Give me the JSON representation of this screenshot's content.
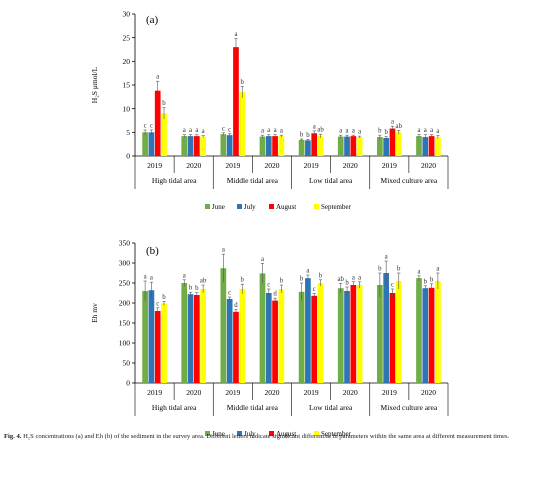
{
  "figure": {
    "caption_label": "Fig. 4.",
    "caption_text": "H₂S concentrations (a) and Eh (b) of the sediment in the survey area. Different letters indicate significant differences in parameters within the same area at different measurement times."
  },
  "colors": {
    "June": "#70ad47",
    "July": "#2e75b6",
    "August": "#ff0000",
    "September": "#ffff00",
    "axis": "#000000",
    "error": "#555555"
  },
  "chart_data": [
    {
      "type": "bar",
      "panel_label": "(a)",
      "ylabel": "H₂S μmol/L",
      "ylim": [
        0,
        30
      ],
      "yticks": [
        0,
        5,
        10,
        15,
        20,
        25,
        30
      ],
      "areas": [
        "High tidal area",
        "Middle tidal area",
        "Low tidal area",
        "Mixed culture area"
      ],
      "years": [
        "2019",
        "2020"
      ],
      "legend": [
        "June",
        "July",
        "August",
        "September"
      ],
      "legend_position": "bottom",
      "groups": [
        {
          "area": "High tidal area",
          "year": "2019",
          "values": [
            5.0,
            5.0,
            13.8,
            9.0
          ],
          "errors": [
            0.5,
            0.5,
            2.0,
            1.2
          ],
          "letters": [
            "c",
            "c",
            "a",
            "b"
          ]
        },
        {
          "area": "High tidal area",
          "year": "2020",
          "values": [
            4.2,
            4.2,
            4.2,
            4.1
          ],
          "errors": [
            0.3,
            0.3,
            0.3,
            0.2
          ],
          "letters": [
            "a",
            "a",
            "a",
            "a"
          ]
        },
        {
          "area": "Middle tidal area",
          "year": "2019",
          "values": [
            4.6,
            4.4,
            23.0,
            13.5
          ],
          "errors": [
            0.3,
            0.3,
            1.8,
            1.2
          ],
          "letters": [
            "c",
            "c",
            "a",
            "b"
          ]
        },
        {
          "area": "Middle tidal area",
          "year": "2020",
          "values": [
            4.1,
            4.2,
            4.2,
            4.2
          ],
          "errors": [
            0.3,
            0.3,
            0.3,
            0.2
          ],
          "letters": [
            "a",
            "a",
            "a",
            "a"
          ]
        },
        {
          "area": "Low tidal area",
          "year": "2019",
          "values": [
            3.4,
            3.3,
            4.8,
            4.2
          ],
          "errors": [
            0.2,
            0.2,
            0.5,
            0.4
          ],
          "letters": [
            "b",
            "b",
            "a",
            "ab"
          ]
        },
        {
          "area": "Low tidal area",
          "year": "2020",
          "values": [
            4.1,
            4.1,
            4.2,
            4.0
          ],
          "errors": [
            0.3,
            0.3,
            0.2,
            0.2
          ],
          "letters": [
            "a",
            "a",
            "a",
            "a"
          ]
        },
        {
          "area": "Mixed culture area",
          "year": "2019",
          "values": [
            4.0,
            3.8,
            5.8,
            5.0
          ],
          "errors": [
            0.4,
            0.3,
            0.5,
            0.4
          ],
          "letters": [
            "b",
            "b",
            "a",
            "ab"
          ]
        },
        {
          "area": "Mixed culture area",
          "year": "2020",
          "values": [
            4.2,
            4.0,
            4.2,
            4.0
          ],
          "errors": [
            0.3,
            0.5,
            0.3,
            0.3
          ],
          "letters": [
            "a",
            "a",
            "a",
            "a"
          ]
        }
      ]
    },
    {
      "type": "bar",
      "panel_label": "(b)",
      "ylabel": "Eh mv",
      "ylim": [
        0,
        350
      ],
      "yticks": [
        0,
        50,
        100,
        150,
        200,
        250,
        300,
        350
      ],
      "areas": [
        "High tidal area",
        "Middle tidal area",
        "Low tidal area",
        "Mixed culture area"
      ],
      "years": [
        "2019",
        "2020"
      ],
      "legend": [
        "June",
        "July",
        "August",
        "September"
      ],
      "legend_position": "bottom",
      "groups": [
        {
          "area": "High tidal area",
          "year": "2019",
          "values": [
            230,
            232,
            180,
            199
          ],
          "errors": [
            25,
            20,
            8,
            5
          ],
          "letters": [
            "a",
            "a",
            "c",
            "b"
          ]
        },
        {
          "area": "High tidal area",
          "year": "2020",
          "values": [
            250,
            222,
            220,
            235
          ],
          "errors": [
            8,
            5,
            6,
            10
          ],
          "letters": [
            "a",
            "b",
            "b",
            "ab"
          ]
        },
        {
          "area": "Middle tidal area",
          "year": "2019",
          "values": [
            287,
            210,
            178,
            235
          ],
          "errors": [
            35,
            5,
            6,
            12
          ],
          "letters": [
            "a",
            "c",
            "d",
            "b"
          ]
        },
        {
          "area": "Middle tidal area",
          "year": "2020",
          "values": [
            274,
            225,
            206,
            235
          ],
          "errors": [
            25,
            10,
            6,
            10
          ],
          "letters": [
            "a",
            "c",
            "d",
            "b"
          ]
        },
        {
          "area": "Low tidal area",
          "year": "2019",
          "values": [
            228,
            262,
            218,
            250
          ],
          "errors": [
            22,
            8,
            6,
            8
          ],
          "letters": [
            "b",
            "a",
            "c",
            "b"
          ]
        },
        {
          "area": "Low tidal area",
          "year": "2020",
          "values": [
            237,
            230,
            245,
            245
          ],
          "errors": [
            12,
            10,
            8,
            8
          ],
          "letters": [
            "ab",
            "b",
            "a",
            "a"
          ]
        },
        {
          "area": "Mixed culture area",
          "year": "2019",
          "values": [
            245,
            275,
            225,
            255
          ],
          "errors": [
            30,
            30,
            10,
            20
          ],
          "letters": [
            "b",
            "a",
            "c",
            "b"
          ]
        },
        {
          "area": "Mixed culture area",
          "year": "2020",
          "values": [
            262,
            237,
            238,
            255
          ],
          "errors": [
            6,
            6,
            10,
            20
          ],
          "letters": [
            "a",
            "b",
            "b",
            "a"
          ]
        }
      ]
    }
  ]
}
